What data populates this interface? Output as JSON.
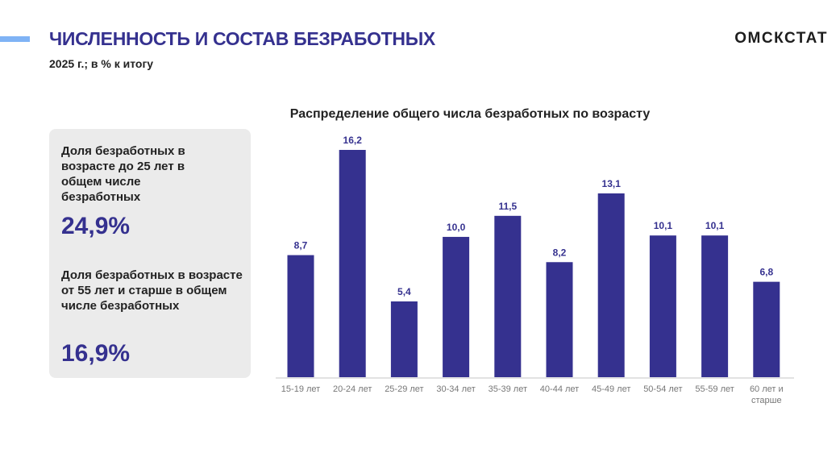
{
  "header": {
    "title": "ЧИСЛЕННОСТЬ И СОСТАВ БЕЗРАБОТНЫХ",
    "subtitle": "2025 г.; в % к итогу",
    "brand": "ОМСКСТАТ"
  },
  "panel": {
    "items": [
      {
        "label": "Доля безработных в возрасте до 25 лет в общем числе безработных",
        "value": "24,9%"
      },
      {
        "label": "Доля безработных в возрасте от 55 лет и старше в общем числе безработных",
        "value": "16,9%"
      }
    ]
  },
  "chart_data": {
    "type": "bar",
    "title": "Распределение общего числа безработных по возрасту",
    "categories": [
      "15-19 лет",
      "20-24 лет",
      "25-29 лет",
      "30-34 лет",
      "35-39 лет",
      "40-44 лет",
      "45-49 лет",
      "50-54 лет",
      "55-59 лет",
      "60 лет и старше"
    ],
    "values": [
      8.7,
      16.2,
      5.4,
      10.0,
      11.5,
      8.2,
      13.1,
      10.1,
      10.1,
      6.8
    ],
    "labels": [
      "8,7",
      "16,2",
      "5,4",
      "10,0",
      "11,5",
      "8,2",
      "13,1",
      "10,1",
      "10,1",
      "6,8"
    ],
    "ylim": [
      0,
      16.2
    ],
    "bar_color": "#35318f",
    "grid": false,
    "xlabel": "",
    "ylabel": ""
  }
}
